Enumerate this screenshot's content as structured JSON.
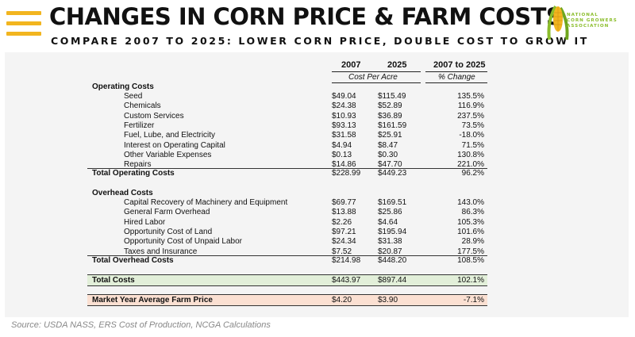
{
  "header": {
    "title": "CHANGES IN CORN PRICE & FARM COSTS",
    "subtitle": "COMPARE 2007 TO 2025: LOWER CORN PRICE, DOUBLE COST TO GROW IT",
    "logo_text": [
      "NATIONAL",
      "CORN GROWERS",
      "ASSOCIATION"
    ]
  },
  "table": {
    "col_2007": "2007",
    "col_2025": "2025",
    "col_change": "2007 to 2025",
    "sub_cost": "Cost Per Acre",
    "sub_change": "% Change",
    "operating_header": "Operating Costs",
    "operating": [
      {
        "label": "Seed",
        "v2007": "$49.04",
        "v2025": "$115.49",
        "change": "135.5%"
      },
      {
        "label": "Chemicals",
        "v2007": "$24.38",
        "v2025": "$52.89",
        "change": "116.9%"
      },
      {
        "label": "Custom Services",
        "v2007": "$10.93",
        "v2025": "$36.89",
        "change": "237.5%"
      },
      {
        "label": "Fertilizer",
        "v2007": "$93.13",
        "v2025": "$161.59",
        "change": "73.5%"
      },
      {
        "label": "Fuel, Lube, and Electricity",
        "v2007": "$31.58",
        "v2025": "$25.91",
        "change": "-18.0%"
      },
      {
        "label": "Interest on Operating Capital",
        "v2007": "$4.94",
        "v2025": "$8.47",
        "change": "71.5%"
      },
      {
        "label": "Other Variable Expenses",
        "v2007": "$0.13",
        "v2025": "$0.30",
        "change": "130.8%"
      },
      {
        "label": "Repairs",
        "v2007": "$14.86",
        "v2025": "$47.70",
        "change": "221.0%"
      }
    ],
    "operating_total": {
      "label": "Total Operating Costs",
      "v2007": "$228.99",
      "v2025": "$449.23",
      "change": "96.2%"
    },
    "overhead_header": "Overhead Costs",
    "overhead": [
      {
        "label": "Capital Recovery of Machinery and Equipment",
        "v2007": "$69.77",
        "v2025": "$169.51",
        "change": "143.0%"
      },
      {
        "label": "General Farm Overhead",
        "v2007": "$13.88",
        "v2025": "$25.86",
        "change": "86.3%"
      },
      {
        "label": "Hired Labor",
        "v2007": "$2.26",
        "v2025": "$4.64",
        "change": "105.3%"
      },
      {
        "label": "Opportunity Cost of Land",
        "v2007": "$97.21",
        "v2025": "$195.94",
        "change": "101.6%"
      },
      {
        "label": "Opportunity Cost of Unpaid Labor",
        "v2007": "$24.34",
        "v2025": "$31.38",
        "change": "28.9%"
      },
      {
        "label": "Taxes and Insurance",
        "v2007": "$7.52",
        "v2025": "$20.87",
        "change": "177.5%"
      }
    ],
    "overhead_total": {
      "label": "Total Overhead Costs",
      "v2007": "$214.98",
      "v2025": "$448.20",
      "change": "108.5%"
    },
    "total_costs": {
      "label": "Total Costs",
      "v2007": "$443.97",
      "v2025": "$897.44",
      "change": "102.1%"
    },
    "farm_price": {
      "label": "Market Year Average Farm Price",
      "v2007": "$4.20",
      "v2025": "$3.90",
      "change": "-7.1%"
    }
  },
  "source": "Source: USDA NASS, ERS Cost of Production, NCGA Calculations",
  "colors": {
    "accent_yellow": "#f2b51f",
    "logo_green": "#8bbd2b",
    "total_green": "#e2efd9",
    "price_red": "#fbe0d2"
  }
}
